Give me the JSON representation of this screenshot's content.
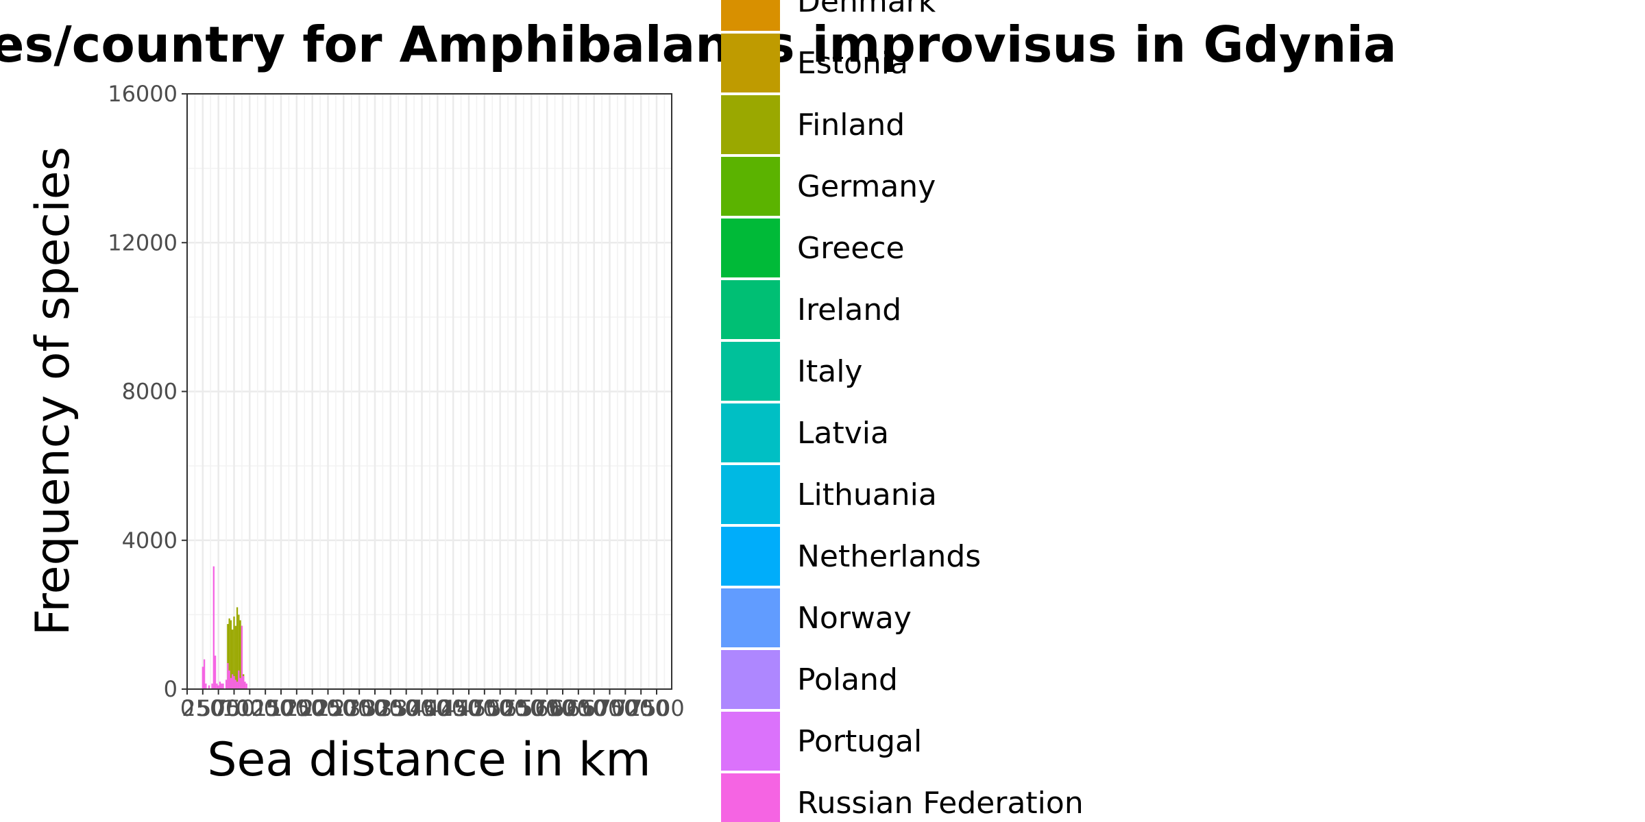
{
  "chart_data": {
    "type": "bar",
    "title": "Distances/country for Amphibalanus improvisus in Gdynia",
    "xlabel": "Sea distance in km",
    "ylabel": "Frequency of species",
    "xlim": [
      0,
      7700
    ],
    "ylim": [
      0,
      16000
    ],
    "x_ticks": [
      "0",
      "250",
      "500",
      "750",
      "1000",
      "1250",
      "1500",
      "1750",
      "2000",
      "2250",
      "2500",
      "2750",
      "3000",
      "3250",
      "3500",
      "3750",
      "4000",
      "4250",
      "4500",
      "4750",
      "5000",
      "5250",
      "5500",
      "5750",
      "6000",
      "6250",
      "6500",
      "6750",
      "7000",
      "7250",
      "7500"
    ],
    "y_ticks": [
      "0",
      "4000",
      "8000",
      "12000",
      "16000"
    ],
    "grid": true,
    "bin_width": 25,
    "legend_position": "right",
    "legend": [
      {
        "name": "Denmark",
        "color": "#D89000"
      },
      {
        "name": "Estonia",
        "color": "#BF9B00"
      },
      {
        "name": "Finland",
        "color": "#9AA800"
      },
      {
        "name": "Germany",
        "color": "#5BB300"
      },
      {
        "name": "Greece",
        "color": "#00BA38"
      },
      {
        "name": "Ireland",
        "color": "#00BF74"
      },
      {
        "name": "Italy",
        "color": "#00C19A"
      },
      {
        "name": "Latvia",
        "color": "#00BFC4"
      },
      {
        "name": "Lithuania",
        "color": "#00B9E3"
      },
      {
        "name": "Netherlands",
        "color": "#00ADFA"
      },
      {
        "name": "Norway",
        "color": "#619CFF"
      },
      {
        "name": "Poland",
        "color": "#AE87FF"
      },
      {
        "name": "Portugal",
        "color": "#DB72FB"
      },
      {
        "name": "Russian Federation",
        "color": "#F564E3"
      }
    ],
    "series": [
      {
        "name": "Finland",
        "color": "#9AA800",
        "x": [
          650,
          675,
          700,
          725,
          750,
          775,
          800,
          825,
          850,
          875,
          900,
          925
        ],
        "values": [
          1750,
          1900,
          1850,
          1600,
          1950,
          1700,
          2200,
          2000,
          1850,
          1700,
          400,
          150
        ]
      },
      {
        "name": "Russian Federation",
        "color": "#F564E3",
        "x": [
          250,
          275,
          300,
          350,
          400,
          425,
          450,
          475,
          500,
          525,
          550,
          575,
          625,
          650,
          675,
          700,
          725,
          750,
          775,
          800,
          825,
          850,
          875,
          900,
          925,
          950
        ],
        "values": [
          600,
          800,
          150,
          100,
          150,
          3300,
          900,
          150,
          100,
          200,
          150,
          150,
          250,
          700,
          500,
          300,
          400,
          350,
          250,
          200,
          500,
          300,
          1700,
          350,
          200,
          150
        ]
      }
    ]
  }
}
